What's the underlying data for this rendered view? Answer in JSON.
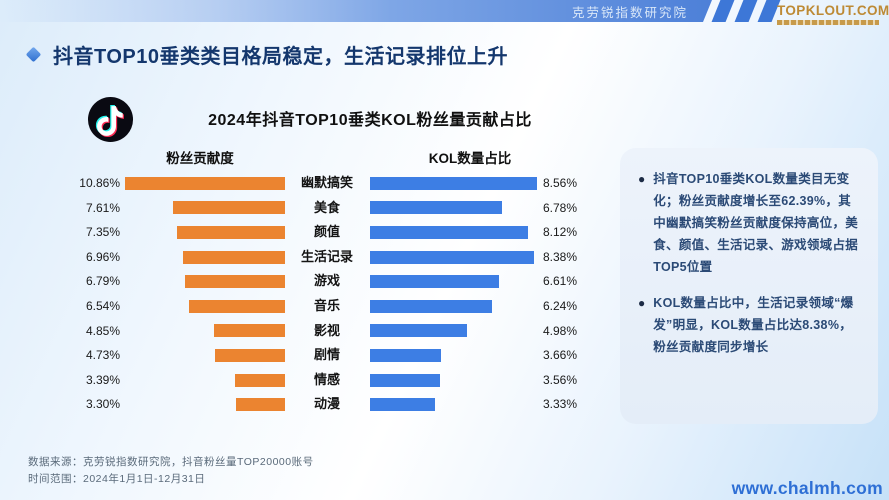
{
  "header": {
    "research_label": "克劳锐指数研究院",
    "logo_text": "TOPKLOUT.COM"
  },
  "headline": "抖音TOP10垂类类目格局稳定，生活记录排位上升",
  "chart": {
    "title": "2024年抖音TOP10垂类KOL粉丝量贡献占比",
    "left_header": "粉丝贡献度",
    "right_header": "KOL数量占比"
  },
  "chart_data": {
    "type": "bar",
    "title": "2024年抖音TOP10垂类KOL粉丝量贡献占比",
    "orientation": "horizontal-butterfly",
    "categories": [
      "幽默搞笑",
      "美食",
      "颜值",
      "生活记录",
      "游戏",
      "音乐",
      "影视",
      "剧情",
      "情感",
      "动漫"
    ],
    "series": [
      {
        "name": "粉丝贡献度",
        "side": "left",
        "color": "#eb8430",
        "values": [
          10.86,
          7.61,
          7.35,
          6.96,
          6.79,
          6.54,
          4.85,
          4.73,
          3.39,
          3.3
        ],
        "labels": [
          "10.86%",
          "7.61%",
          "7.35%",
          "6.96%",
          "6.79%",
          "6.54%",
          "4.85%",
          "4.73%",
          "3.39%",
          "3.30%"
        ]
      },
      {
        "name": "KOL数量占比",
        "side": "right",
        "color": "#3d7ee4",
        "values": [
          8.56,
          6.78,
          8.12,
          8.38,
          6.61,
          6.24,
          4.98,
          3.66,
          3.56,
          3.33
        ],
        "labels": [
          "8.56%",
          "6.78%",
          "8.12%",
          "8.38%",
          "6.61%",
          "6.24%",
          "4.98%",
          "3.66%",
          "3.56%",
          "3.33%"
        ]
      }
    ],
    "value_suffix": "%",
    "legend_position": "column-headers",
    "grid": false
  },
  "insights": {
    "items": [
      "抖音TOP10垂类KOL数量类目无变化；粉丝贡献度增长至62.39%，其中幽默搞笑粉丝贡献度保持高位，美食、颜值、生活记录、游戏领域占据TOP5位置",
      "KOL数量占比中，生活记录领域“爆发”明显，KOL数量占比达8.38%，粉丝贡献度同步增长"
    ]
  },
  "footer": {
    "source": "数据来源：克劳锐指数研究院，抖音粉丝量TOP20000账号",
    "period": "时间范围：2024年1月1日-12月31日",
    "website": "www.chalmh.com"
  },
  "colors": {
    "bar_left": "#eb8430",
    "bar_right": "#3d7ee4",
    "headline": "#14376d",
    "topbar_blue": "#4d80d8",
    "logo_gold": "#bd8a35",
    "panel_bg": "#e8eff9",
    "website_blue": "#2e6fd5"
  }
}
